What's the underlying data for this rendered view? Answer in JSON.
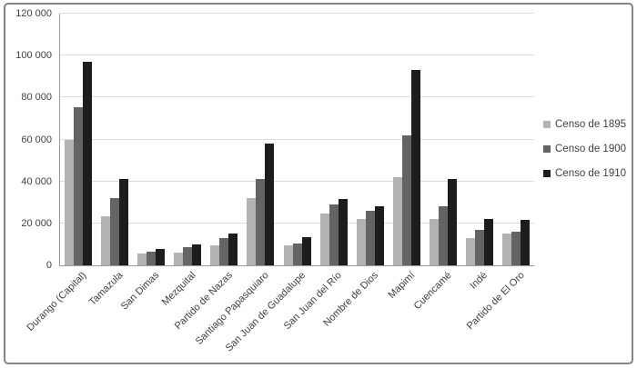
{
  "figure": {
    "background": "#ffffff",
    "border_color": "#858585"
  },
  "chart_data": {
    "type": "bar",
    "title": "",
    "xlabel": "",
    "ylabel": "",
    "categories": [
      "Durango (Capital)",
      "Tamazula",
      "San Dimas",
      "Mezquital",
      "Partido de Nazas",
      "Santiago Papasquiaro",
      "San Juan de Guadalupe",
      "San Juan del Río",
      "Nombre de Dios",
      "Mapimí",
      "Cuencamé",
      "Indé",
      "Partido de El Oro"
    ],
    "series": [
      {
        "name": "Censo de 1895",
        "color": "#b3b3b3",
        "values": [
          60000,
          23500,
          5500,
          6000,
          9500,
          32000,
          9500,
          24500,
          22000,
          42000,
          22000,
          13000,
          15000
        ]
      },
      {
        "name": "Censo de 1900",
        "color": "#646464",
        "values": [
          75500,
          32000,
          6500,
          8500,
          13000,
          41000,
          10500,
          29000,
          26000,
          62000,
          28000,
          17000,
          16000
        ]
      },
      {
        "name": "Censo de 1910",
        "color": "#1d1d1d",
        "values": [
          97000,
          41000,
          8000,
          10000,
          15000,
          58000,
          13500,
          31500,
          28000,
          93000,
          41000,
          22000,
          21500
        ]
      }
    ],
    "ylim": [
      0,
      120000
    ],
    "ytick_interval": 20000,
    "ytick_labels": [
      "120 000",
      "100 000",
      "80 000",
      "60 000",
      "40 000",
      "20 000",
      "0"
    ],
    "grid": "horizontal",
    "legend_position": "right",
    "colors": {
      "gridline": "#dcdcdc",
      "axis": "#9a9a9a",
      "text": "#3f3f3f"
    }
  }
}
